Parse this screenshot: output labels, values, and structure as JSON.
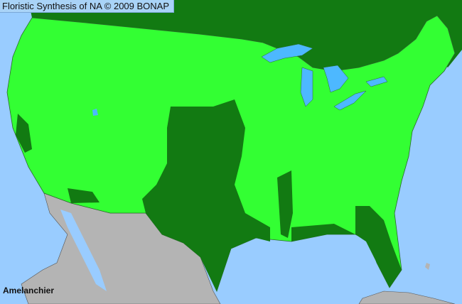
{
  "title": "Floristic Synthesis of NA © 2009 BONAP",
  "taxon_label": "Amelanchier",
  "legend_colors": {
    "ocean": "#99ccff",
    "present_county": "#33ff33",
    "absent_region": "#127a12",
    "outside_range": "#b4b4b4",
    "lakes": "#4db8ff",
    "county_borders": "#2a6a2a"
  }
}
